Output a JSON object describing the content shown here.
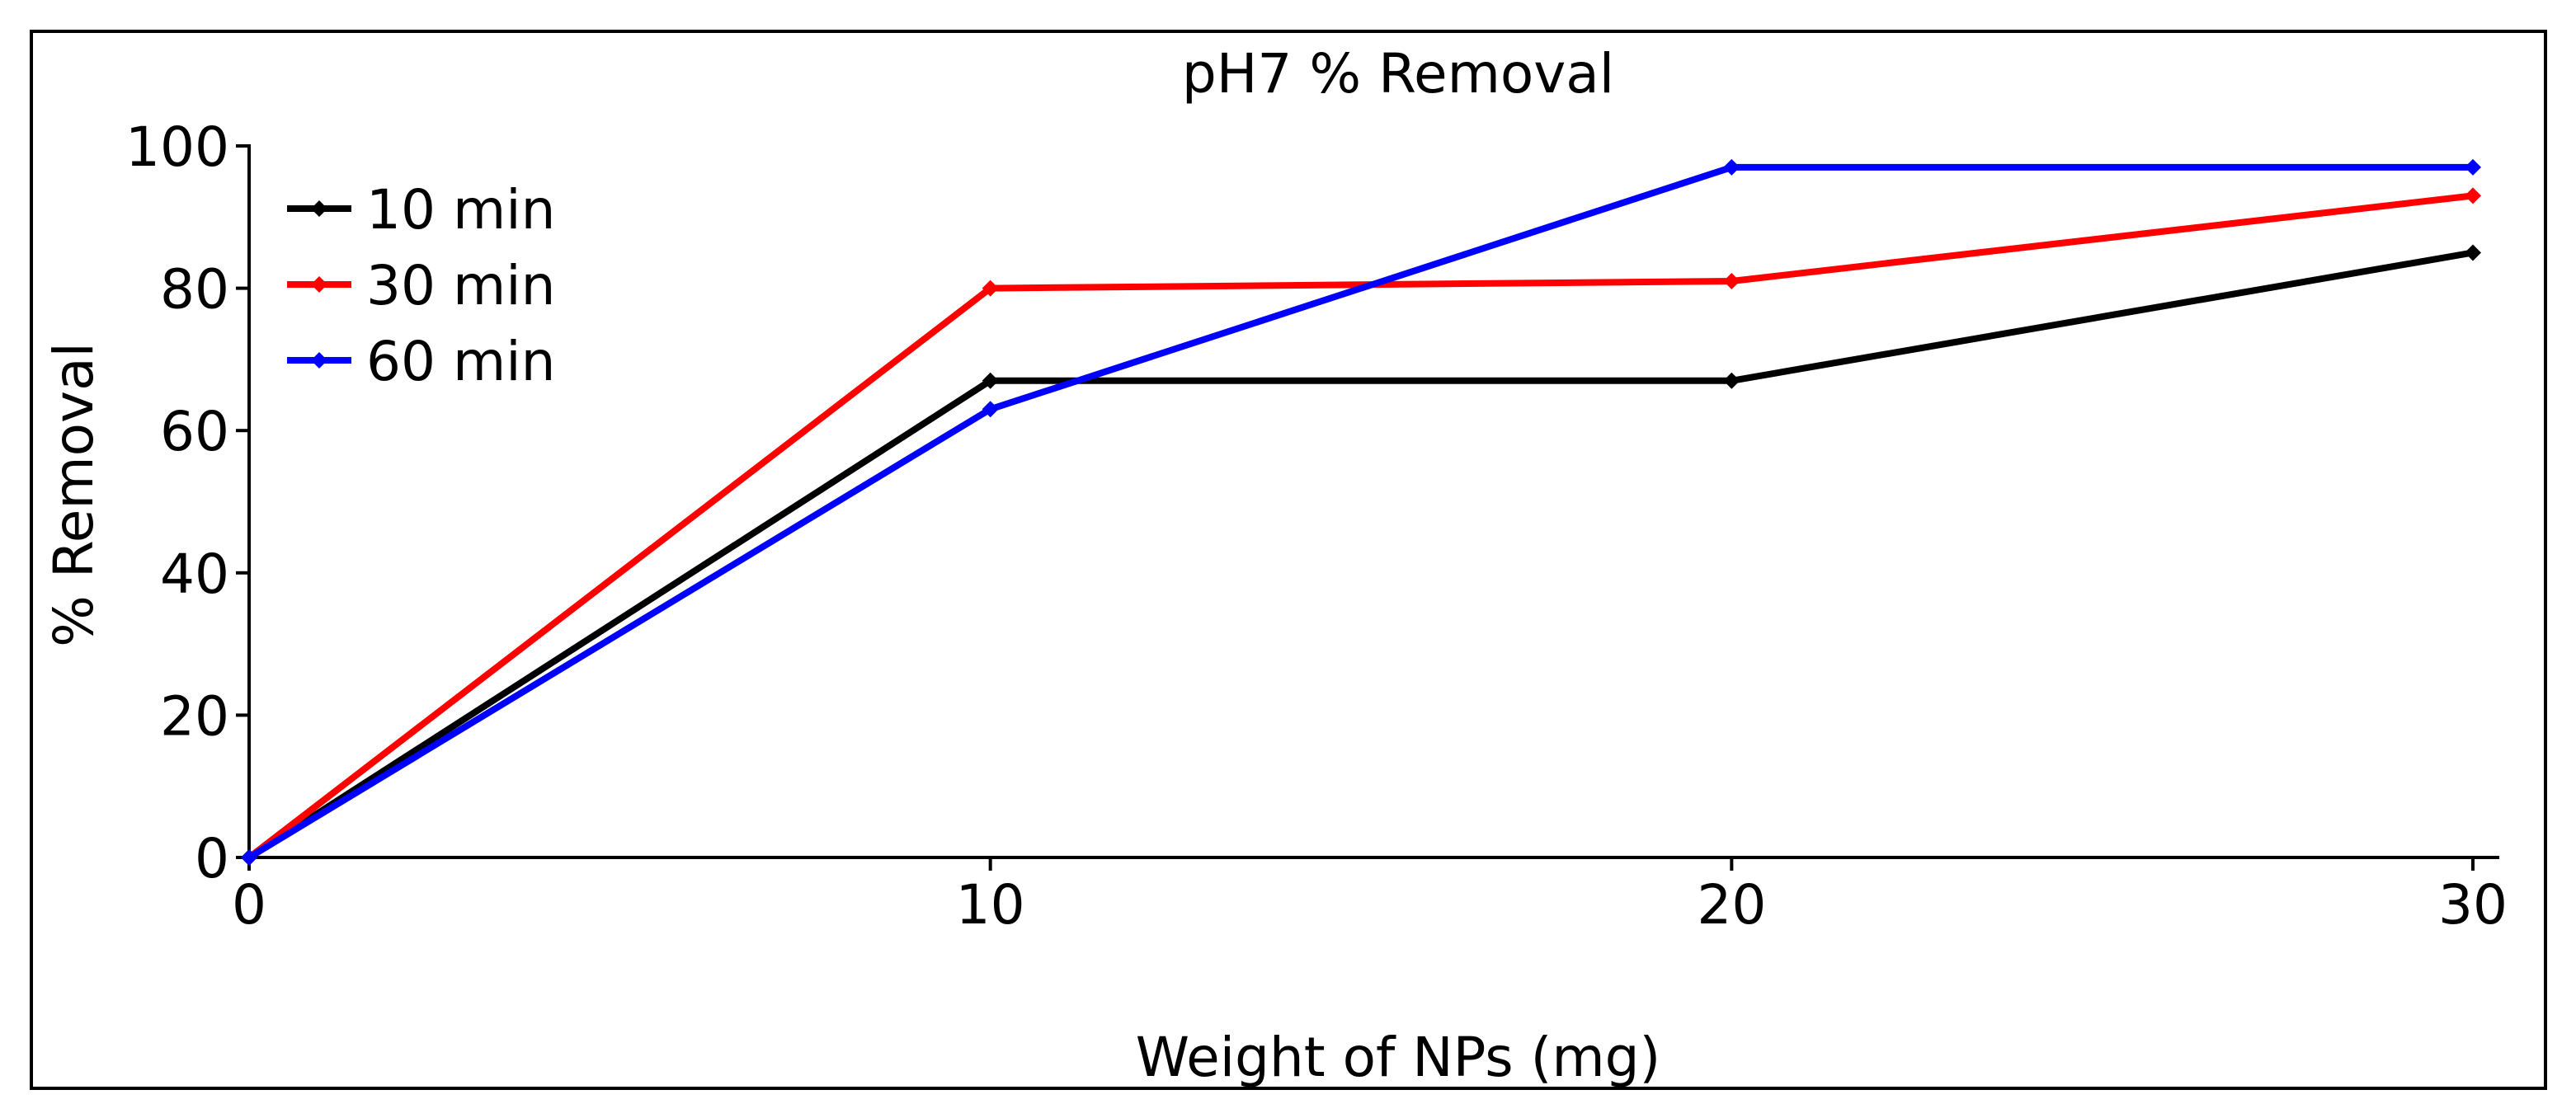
{
  "chart_data": {
    "type": "line",
    "title": "pH7 % Removal",
    "xlabel": "Weight of NPs (mg)",
    "ylabel": "% Removal",
    "x": [
      0,
      10,
      20,
      30
    ],
    "xlim": [
      0,
      30
    ],
    "ylim": [
      0,
      100
    ],
    "xticks": [
      "0",
      "10",
      "20",
      "30"
    ],
    "yticks": [
      "0",
      "20",
      "40",
      "60",
      "80",
      "100"
    ],
    "grid": false,
    "legend_position": "top-left",
    "series": [
      {
        "name": "10 min",
        "color": "#000000",
        "values": [
          0,
          67,
          67,
          85
        ]
      },
      {
        "name": "30 min",
        "color": "#ff0000",
        "values": [
          0,
          80,
          81,
          93
        ]
      },
      {
        "name": "60 min",
        "color": "#0000ff",
        "values": [
          0,
          63,
          97,
          97
        ]
      }
    ]
  }
}
